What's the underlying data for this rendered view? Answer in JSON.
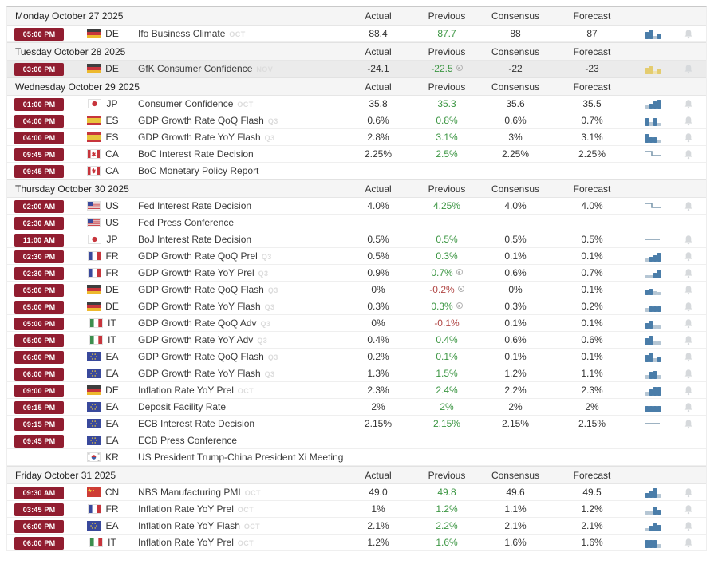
{
  "columns": [
    "Actual",
    "Previous",
    "Consensus",
    "Forecast"
  ],
  "colors": {
    "time_badge_bg": "#911d30",
    "previous_up_green": "#3c9643",
    "previous_down_red": "#b04543",
    "spark_blue": "#4a7da9",
    "spark_blue_faded": "#b5c6d4",
    "spark_yellow": "#e4cc6f",
    "spark_yellow_faded": "#f0e3b0",
    "spark_line": "#7d99ad",
    "day_header_bg": "#f5f5f5",
    "highlight_row_bg": "#ebebeb",
    "bell_gray": "#d6d9dc",
    "tag_gray": "#dcdcdc"
  },
  "icons": {
    "bell": "bell-icon",
    "spark_bars": "mini-bar-chart-icon",
    "spark_step": "step-line-chart-icon",
    "spark_flat": "flat-line-chart-icon",
    "revised_dot": "revised-indicator-icon",
    "flag": "country-flag-icon"
  },
  "days": [
    {
      "label": "Monday October 27 2025",
      "rows": [
        {
          "time": "05:00 PM",
          "country": "DE",
          "event": "Ifo Business Climate",
          "tag": "OCT",
          "actual": "88.4",
          "previous": "87.7",
          "previous_color": "green",
          "revised": false,
          "consensus": "88",
          "forecast": "87",
          "spark": {
            "type": "bars",
            "heights": [
              6,
              9,
              1,
              4
            ]
          },
          "bell": true,
          "highlight": false
        }
      ]
    },
    {
      "label": "Tuesday October 28 2025",
      "rows": [
        {
          "time": "03:00 PM",
          "country": "DE",
          "event": "GfK Consumer Confidence",
          "tag": "NOV",
          "actual": "-24.1",
          "previous": "-22.5",
          "previous_color": "green",
          "revised": true,
          "consensus": "-22",
          "forecast": "-23",
          "spark": {
            "type": "bars",
            "heights": [
              5,
              7,
              1,
              4
            ],
            "color": "yellow"
          },
          "bell": true,
          "highlight": true
        }
      ]
    },
    {
      "label": "Wednesday October 29 2025",
      "rows": [
        {
          "time": "01:00 PM",
          "country": "JP",
          "event": "Consumer Confidence",
          "tag": "OCT",
          "actual": "35.8",
          "previous": "35.3",
          "previous_color": "green",
          "revised": false,
          "consensus": "35.6",
          "forecast": "35.5",
          "spark": {
            "type": "bars",
            "heights": [
              2,
              4,
              7,
              9
            ]
          },
          "bell": true,
          "highlight": false
        },
        {
          "time": "04:00 PM",
          "country": "ES",
          "event": "GDP Growth Rate QoQ Flash",
          "tag": "Q3",
          "actual": "0.6%",
          "previous": "0.8%",
          "previous_color": "green",
          "revised": false,
          "consensus": "0.6%",
          "forecast": "0.7%",
          "spark": {
            "type": "bars",
            "heights": [
              7,
              2,
              7,
              1
            ]
          },
          "bell": true,
          "highlight": false
        },
        {
          "time": "04:00 PM",
          "country": "ES",
          "event": "GDP Growth Rate YoY Flash",
          "tag": "Q3",
          "actual": "2.8%",
          "previous": "3.1%",
          "previous_color": "green",
          "revised": false,
          "consensus": "3%",
          "forecast": "3.1%",
          "spark": {
            "type": "bars",
            "heights": [
              8,
              4,
              4,
              1
            ]
          },
          "bell": true,
          "highlight": false
        },
        {
          "time": "09:45 PM",
          "country": "CA",
          "event": "BoC Interest Rate Decision",
          "tag": "",
          "actual": "2.25%",
          "previous": "2.5%",
          "previous_color": "green",
          "revised": false,
          "consensus": "2.25%",
          "forecast": "2.25%",
          "spark": {
            "type": "step"
          },
          "bell": true,
          "highlight": false
        },
        {
          "time": "09:45 PM",
          "country": "CA",
          "event": "BoC Monetary Policy Report",
          "tag": "",
          "actual": "",
          "previous": "",
          "previous_color": "",
          "revised": false,
          "consensus": "",
          "forecast": "",
          "spark": null,
          "bell": false,
          "highlight": false
        }
      ]
    },
    {
      "label": "Thursday October 30 2025",
      "rows": [
        {
          "time": "02:00 AM",
          "country": "US",
          "event": "Fed Interest Rate Decision",
          "tag": "",
          "actual": "4.0%",
          "previous": "4.25%",
          "previous_color": "green",
          "revised": false,
          "consensus": "4.0%",
          "forecast": "4.0%",
          "spark": {
            "type": "step"
          },
          "bell": true,
          "highlight": false
        },
        {
          "time": "02:30 AM",
          "country": "US",
          "event": "Fed Press Conference",
          "tag": "",
          "actual": "",
          "previous": "",
          "previous_color": "",
          "revised": false,
          "consensus": "",
          "forecast": "",
          "spark": null,
          "bell": false,
          "highlight": false
        },
        {
          "time": "11:00 AM",
          "country": "JP",
          "event": "BoJ Interest Rate Decision",
          "tag": "",
          "actual": "0.5%",
          "previous": "0.5%",
          "previous_color": "green",
          "revised": false,
          "consensus": "0.5%",
          "forecast": "0.5%",
          "spark": {
            "type": "flat"
          },
          "bell": true,
          "highlight": false
        },
        {
          "time": "02:30 PM",
          "country": "FR",
          "event": "GDP Growth Rate QoQ Prel",
          "tag": "Q3",
          "actual": "0.5%",
          "previous": "0.3%",
          "previous_color": "green",
          "revised": false,
          "consensus": "0.1%",
          "forecast": "0.1%",
          "spark": {
            "type": "bars",
            "heights": [
              1,
              3,
              5,
              8
            ]
          },
          "bell": true,
          "highlight": false
        },
        {
          "time": "02:30 PM",
          "country": "FR",
          "event": "GDP Growth Rate YoY Prel",
          "tag": "Q3",
          "actual": "0.9%",
          "previous": "0.7%",
          "previous_color": "green",
          "revised": true,
          "consensus": "0.6%",
          "forecast": "0.7%",
          "spark": {
            "type": "bars",
            "heights": [
              1,
              1,
              4,
              8
            ]
          },
          "bell": true,
          "highlight": false
        },
        {
          "time": "05:00 PM",
          "country": "DE",
          "event": "GDP Growth Rate QoQ Flash",
          "tag": "Q3",
          "actual": "0%",
          "previous": "-0.2%",
          "previous_color": "red",
          "revised": true,
          "consensus": "0%",
          "forecast": "0.1%",
          "spark": {
            "type": "bars",
            "heights": [
              4,
              5,
              2,
              1
            ]
          },
          "bell": true,
          "highlight": false
        },
        {
          "time": "05:00 PM",
          "country": "DE",
          "event": "GDP Growth Rate YoY Flash",
          "tag": "Q3",
          "actual": "0.3%",
          "previous": "0.3%",
          "previous_color": "green",
          "revised": true,
          "consensus": "0.3%",
          "forecast": "0.2%",
          "spark": {
            "type": "bars",
            "heights": [
              2,
              4,
              4,
              4
            ]
          },
          "bell": true,
          "highlight": false
        },
        {
          "time": "05:00 PM",
          "country": "IT",
          "event": "GDP Growth Rate QoQ Adv",
          "tag": "Q3",
          "actual": "0%",
          "previous": "-0.1%",
          "previous_color": "red",
          "revised": false,
          "consensus": "0.1%",
          "forecast": "0.1%",
          "spark": {
            "type": "bars",
            "heights": [
              4,
              7,
              2,
              1
            ]
          },
          "bell": true,
          "highlight": false
        },
        {
          "time": "05:00 PM",
          "country": "IT",
          "event": "GDP Growth Rate YoY Adv",
          "tag": "Q3",
          "actual": "0.4%",
          "previous": "0.4%",
          "previous_color": "green",
          "revised": false,
          "consensus": "0.6%",
          "forecast": "0.6%",
          "spark": {
            "type": "bars",
            "heights": [
              6,
              9,
              2,
              2
            ]
          },
          "bell": true,
          "highlight": false
        },
        {
          "time": "06:00 PM",
          "country": "EA",
          "event": "GDP Growth Rate QoQ Flash",
          "tag": "Q3",
          "actual": "0.2%",
          "previous": "0.1%",
          "previous_color": "green",
          "revised": false,
          "consensus": "0.1%",
          "forecast": "0.1%",
          "spark": {
            "type": "bars",
            "heights": [
              6,
              9,
              2,
              3
            ]
          },
          "bell": true,
          "highlight": false
        },
        {
          "time": "06:00 PM",
          "country": "EA",
          "event": "GDP Growth Rate YoY Flash",
          "tag": "Q3",
          "actual": "1.3%",
          "previous": "1.5%",
          "previous_color": "green",
          "revised": false,
          "consensus": "1.2%",
          "forecast": "1.1%",
          "spark": {
            "type": "bars",
            "heights": [
              2,
              6,
              7,
              2
            ]
          },
          "bell": true,
          "highlight": false
        },
        {
          "time": "09:00 PM",
          "country": "DE",
          "event": "Inflation Rate YoY Prel",
          "tag": "OCT",
          "actual": "2.3%",
          "previous": "2.4%",
          "previous_color": "green",
          "revised": false,
          "consensus": "2.2%",
          "forecast": "2.3%",
          "spark": {
            "type": "bars",
            "heights": [
              2,
              5,
              8,
              8
            ]
          },
          "bell": true,
          "highlight": false
        },
        {
          "time": "09:15 PM",
          "country": "EA",
          "event": "Deposit Facility Rate",
          "tag": "",
          "actual": "2%",
          "previous": "2%",
          "previous_color": "green",
          "revised": false,
          "consensus": "2%",
          "forecast": "2%",
          "spark": {
            "type": "bars",
            "heights": [
              5,
              5,
              5,
              5
            ]
          },
          "bell": true,
          "highlight": false
        },
        {
          "time": "09:15 PM",
          "country": "EA",
          "event": "ECB Interest Rate Decision",
          "tag": "",
          "actual": "2.15%",
          "previous": "2.15%",
          "previous_color": "green",
          "revised": false,
          "consensus": "2.15%",
          "forecast": "2.15%",
          "spark": {
            "type": "flat"
          },
          "bell": true,
          "highlight": false
        },
        {
          "time": "09:45 PM",
          "country": "EA",
          "event": "ECB Press Conference",
          "tag": "",
          "actual": "",
          "previous": "",
          "previous_color": "",
          "revised": false,
          "consensus": "",
          "forecast": "",
          "spark": null,
          "bell": false,
          "highlight": false
        },
        {
          "time": "",
          "country": "KR",
          "event": "US President Trump-China President Xi Meeting",
          "tag": "",
          "actual": "",
          "previous": "",
          "previous_color": "",
          "revised": false,
          "consensus": "",
          "forecast": "",
          "spark": null,
          "bell": false,
          "highlight": false
        }
      ]
    },
    {
      "label": "Friday October 31 2025",
      "rows": [
        {
          "time": "09:30 AM",
          "country": "CN",
          "event": "NBS Manufacturing PMI",
          "tag": "OCT",
          "actual": "49.0",
          "previous": "49.8",
          "previous_color": "green",
          "revised": false,
          "consensus": "49.6",
          "forecast": "49.5",
          "spark": {
            "type": "bars",
            "heights": [
              3,
              6,
              9,
              2
            ]
          },
          "bell": true,
          "highlight": false
        },
        {
          "time": "03:45 PM",
          "country": "FR",
          "event": "Inflation Rate YoY Prel",
          "tag": "OCT",
          "actual": "1%",
          "previous": "1.2%",
          "previous_color": "green",
          "revised": false,
          "consensus": "1.1%",
          "forecast": "1.2%",
          "spark": {
            "type": "bars",
            "heights": [
              2,
              1,
              7,
              3
            ]
          },
          "bell": true,
          "highlight": false
        },
        {
          "time": "06:00 PM",
          "country": "EA",
          "event": "Inflation Rate YoY Flash",
          "tag": "OCT",
          "actual": "2.1%",
          "previous": "2.2%",
          "previous_color": "green",
          "revised": false,
          "consensus": "2.1%",
          "forecast": "2.1%",
          "spark": {
            "type": "bars",
            "heights": [
              1,
              4,
              7,
              5
            ]
          },
          "bell": true,
          "highlight": false
        },
        {
          "time": "06:00 PM",
          "country": "IT",
          "event": "Inflation Rate YoY Prel",
          "tag": "OCT",
          "actual": "1.2%",
          "previous": "1.6%",
          "previous_color": "green",
          "revised": false,
          "consensus": "1.6%",
          "forecast": "1.6%",
          "spark": {
            "type": "bars",
            "heights": [
              7,
              7,
              7,
              2
            ]
          },
          "bell": true,
          "highlight": false
        }
      ]
    }
  ]
}
